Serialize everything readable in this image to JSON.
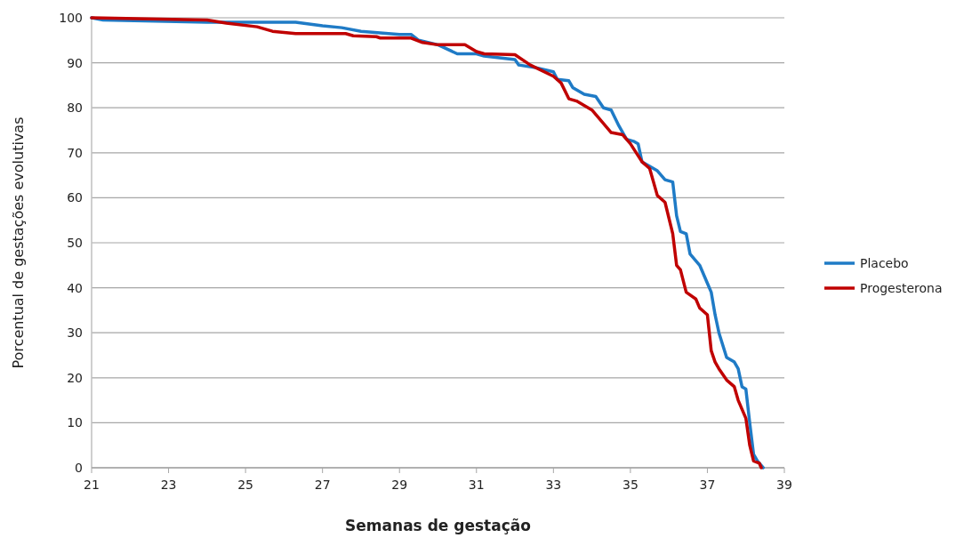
{
  "chart_data": {
    "type": "line",
    "xlabel": "Semanas de gestação",
    "ylabel": "Porcentual de gestações evolutivas",
    "xlim": [
      21,
      39
    ],
    "xticks": [
      21,
      23,
      25,
      27,
      29,
      31,
      33,
      35,
      37,
      39
    ],
    "ylim": [
      0,
      100
    ],
    "yticks": [
      0,
      10,
      20,
      30,
      40,
      50,
      60,
      70,
      80,
      90,
      100
    ],
    "grid": "y",
    "legend": "right",
    "line_style": "solid",
    "marker": "none",
    "series": [
      {
        "name": "Placebo",
        "color": "#1f7bc6",
        "x": [
          21,
          21.3,
          24,
          26.3,
          27,
          27.5,
          28,
          29,
          29.3,
          29.5,
          30,
          30.5,
          31,
          31.2,
          32,
          32.1,
          32.5,
          33,
          33.1,
          33.4,
          33.5,
          33.8,
          34.1,
          34.3,
          34.5,
          34.7,
          34.9,
          35.1,
          35.2,
          35.3,
          35.5,
          35.7,
          35.9,
          36.1,
          36.2,
          36.3,
          36.45,
          36.55,
          36.8,
          37,
          37.1,
          37.2,
          37.3,
          37.5,
          37.7,
          37.8,
          37.9,
          38,
          38.1,
          38.2,
          38.3,
          38.45
        ],
        "values": [
          100,
          99.5,
          99,
          99,
          98.2,
          97.8,
          97,
          96.3,
          96.3,
          95,
          94,
          92,
          92,
          91.5,
          90.7,
          89.5,
          89,
          88,
          86.3,
          86,
          84.5,
          83,
          82.5,
          80,
          79.5,
          76,
          73,
          72.5,
          72,
          68,
          67,
          66,
          64,
          63.5,
          56,
          52.5,
          52,
          47.5,
          45,
          41,
          39,
          34,
          30,
          24.5,
          23.5,
          22,
          18,
          17.5,
          10,
          3,
          1.5,
          0
        ]
      },
      {
        "name": "Progesterona",
        "color": "#c00000",
        "x": [
          21,
          24,
          24.5,
          25.3,
          25.7,
          26.3,
          27.6,
          27.8,
          28.4,
          28.5,
          29.3,
          29.6,
          30,
          30.7,
          31,
          31.2,
          32,
          32.4,
          33,
          33.2,
          33.4,
          33.6,
          34,
          34.3,
          34.5,
          34.8,
          35,
          35.3,
          35.5,
          35.7,
          35.9,
          36.1,
          36.2,
          36.3,
          36.45,
          36.7,
          36.8,
          37,
          37.1,
          37.2,
          37.3,
          37.5,
          37.7,
          37.8,
          38,
          38.1,
          38.2,
          38.35,
          38.4
        ],
        "values": [
          100,
          99.5,
          98.8,
          98,
          97,
          96.5,
          96.5,
          96,
          95.8,
          95.5,
          95.5,
          94.5,
          94,
          94,
          92.5,
          92,
          91.8,
          89.5,
          87,
          85.5,
          82,
          81.5,
          79.5,
          76.5,
          74.5,
          74,
          72,
          68,
          66.5,
          60.5,
          59,
          52,
          45,
          44,
          39,
          37.5,
          35.5,
          34,
          26,
          23.5,
          22,
          19.5,
          18,
          15,
          11,
          5,
          1.5,
          1,
          0
        ]
      }
    ]
  }
}
